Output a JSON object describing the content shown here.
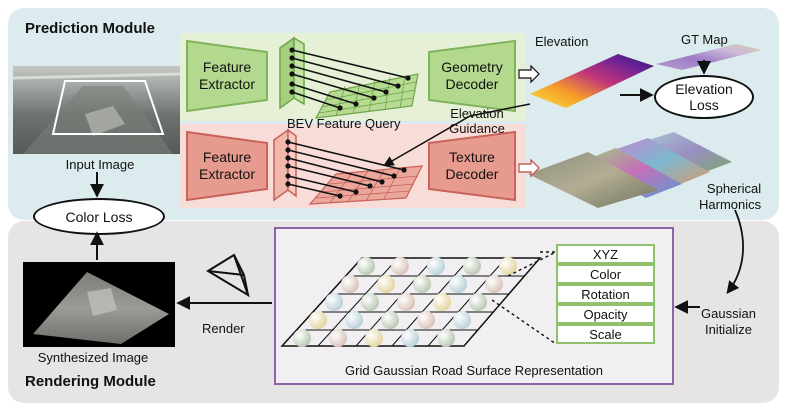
{
  "modules": {
    "prediction_title": "Prediction Module",
    "rendering_title": "Rendering Module"
  },
  "blocks": {
    "feature_extractor_top": "Feature\nExtractor",
    "feature_extractor_bottom": "Feature\nExtractor",
    "geometry_decoder": "Geometry\nDecoder",
    "texture_decoder": "Texture\nDecoder"
  },
  "labels": {
    "input_image": "Input Image",
    "bev_feature_query": "BEV Feature Query",
    "elevation_guidance": "Elevation\nGuidance",
    "elevation": "Elevation",
    "gt_map": "GT Map",
    "elevation_loss": "Elevation\nLoss",
    "spherical_harmonics": "Spherical\nHarmonics",
    "color_loss": "Color Loss",
    "synthesized_image": "Synthesized Image",
    "render": "Render",
    "gaussian_initialize": "Gaussian\nInitialize",
    "grid_representation": "Grid Gaussian Road Surface Representation"
  },
  "attributes": [
    "XYZ",
    "Color",
    "Rotation",
    "Opacity",
    "Scale"
  ],
  "colors": {
    "prediction_bg": "#dcebed",
    "rendering_bg": "#e7e4e6",
    "green_band": "#e6f0d6",
    "red_band": "#f8dcd7",
    "green_fill": "#b3d98f",
    "green_border": "#7fb35a",
    "red_fill": "#e79a8e",
    "red_border": "#c8625a",
    "purple_frame": "#8a64a8"
  }
}
